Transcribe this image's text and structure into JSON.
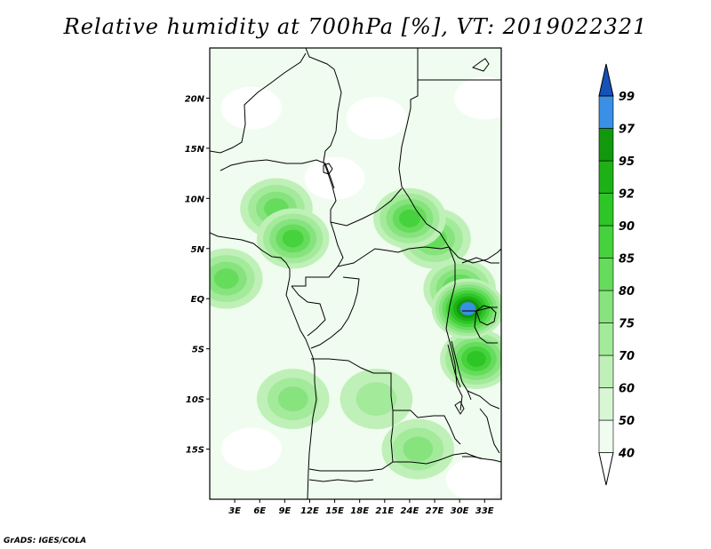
{
  "title": "Relative humidity at 700hPa [%], VT: 2019022321",
  "credit": "GrADS: IGES/COLA",
  "map": {
    "lon_range": [
      0,
      35
    ],
    "lat_range": [
      -20,
      25
    ],
    "lat_ticks": [
      {
        "value": 20,
        "label": "20N"
      },
      {
        "value": 15,
        "label": "15N"
      },
      {
        "value": 10,
        "label": "10N"
      },
      {
        "value": 5,
        "label": "5N"
      },
      {
        "value": 0,
        "label": "EQ"
      },
      {
        "value": -5,
        "label": "5S"
      },
      {
        "value": -10,
        "label": "10S"
      },
      {
        "value": -15,
        "label": "15S"
      }
    ],
    "lon_ticks": [
      {
        "value": 3,
        "label": "3E"
      },
      {
        "value": 6,
        "label": "6E"
      },
      {
        "value": 9,
        "label": "9E"
      },
      {
        "value": 12,
        "label": "12E"
      },
      {
        "value": 15,
        "label": "15E"
      },
      {
        "value": 18,
        "label": "18E"
      },
      {
        "value": 21,
        "label": "21E"
      },
      {
        "value": 24,
        "label": "24E"
      },
      {
        "value": 27,
        "label": "27E"
      },
      {
        "value": 30,
        "label": "30E"
      },
      {
        "value": 33,
        "label": "33E"
      }
    ]
  },
  "colorbar": {
    "levels": [
      "40",
      "50",
      "60",
      "70",
      "75",
      "80",
      "85",
      "90",
      "92",
      "95",
      "97",
      "99"
    ],
    "colors": [
      "#f0fcef",
      "#d8f6d4",
      "#bff0b8",
      "#a3ea9b",
      "#86e37d",
      "#66dc5c",
      "#46d23d",
      "#2ec526",
      "#1db116",
      "#12980d",
      "#3a8fe6",
      "#1f6fd6",
      "#1552b8"
    ],
    "lower_cap": "#ffffff",
    "upper_cap": "#1552b8"
  },
  "chart_data": {
    "type": "heatmap",
    "title": "Relative humidity at 700hPa [%], VT: 2019022321",
    "variable": "Relative humidity",
    "units": "%",
    "level": "700hPa",
    "valid_time": "2019022321",
    "lon_range": [
      0,
      35
    ],
    "lat_range": [
      -20,
      25
    ],
    "contour_levels": [
      40,
      50,
      60,
      70,
      75,
      80,
      85,
      90,
      92,
      95,
      97,
      99
    ],
    "moist_regions": [
      {
        "lon": 8,
        "lat": 9,
        "value": 80
      },
      {
        "lon": 10,
        "lat": 6,
        "value": 85
      },
      {
        "lon": 2,
        "lat": 2,
        "value": 80
      },
      {
        "lon": 24,
        "lat": 8,
        "value": 85
      },
      {
        "lon": 27,
        "lat": 6,
        "value": 80
      },
      {
        "lon": 30,
        "lat": 1,
        "value": 85
      },
      {
        "lon": 32,
        "lat": -6,
        "value": 90
      },
      {
        "lon": 31,
        "lat": -1,
        "value": 97
      },
      {
        "lon": 10,
        "lat": -10,
        "value": 75
      },
      {
        "lon": 25,
        "lat": -15,
        "value": 75
      },
      {
        "lon": 20,
        "lat": -10,
        "value": 70
      }
    ],
    "dry_regions": [
      {
        "lon": 20,
        "lat": 18,
        "value": 40
      },
      {
        "lon": 5,
        "lat": 19,
        "value": 40
      },
      {
        "lon": 15,
        "lat": 12,
        "value": 40
      },
      {
        "lon": 33,
        "lat": 20,
        "value": 40
      },
      {
        "lon": 5,
        "lat": -15,
        "value": 40
      },
      {
        "lon": 32,
        "lat": -18,
        "value": 40
      }
    ]
  }
}
